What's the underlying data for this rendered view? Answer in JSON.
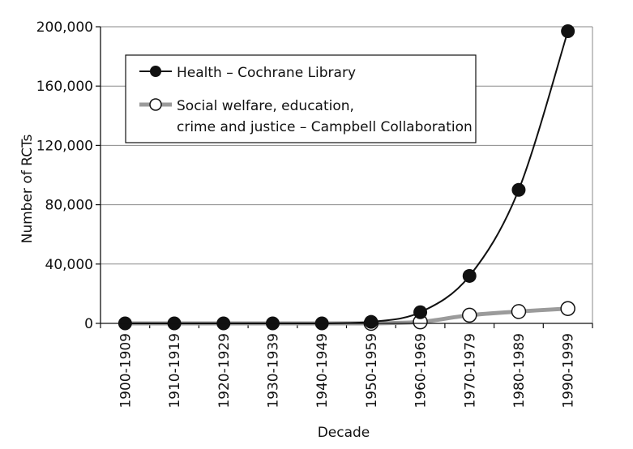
{
  "chart_data": {
    "type": "line",
    "title": "",
    "xlabel": "Decade",
    "ylabel": "Number of RCTs",
    "categories": [
      "1900-1909",
      "1910-1919",
      "1920-1929",
      "1930-1939",
      "1940-1949",
      "1950-1959",
      "1960-1969",
      "1970-1979",
      "1980-1989",
      "1990-1999"
    ],
    "ylim": [
      0,
      200000
    ],
    "yticks": [
      0,
      40000,
      80000,
      120000,
      160000,
      200000
    ],
    "ytick_labels": [
      "0",
      "40,000",
      "80,000",
      "120,000",
      "160,000",
      "200,000"
    ],
    "grid": true,
    "legend_position": "top-left",
    "series": [
      {
        "name": "Health – Cochrane Library",
        "name_lines": [
          "Health – Cochrane Library"
        ],
        "marker": "filled-circle",
        "color": "#111111",
        "values": [
          0,
          0,
          0,
          0,
          0,
          1000,
          7500,
          32000,
          90000,
          197000
        ]
      },
      {
        "name": "Social welfare, education, crime and justice – Campbell Collaboration",
        "name_lines": [
          "Social welfare, education,",
          "crime and justice – Campbell Collaboration"
        ],
        "marker": "open-circle",
        "color": "#9b9b9b",
        "values": [
          0,
          0,
          0,
          0,
          0,
          0,
          1000,
          5500,
          8000,
          10000
        ]
      }
    ]
  }
}
